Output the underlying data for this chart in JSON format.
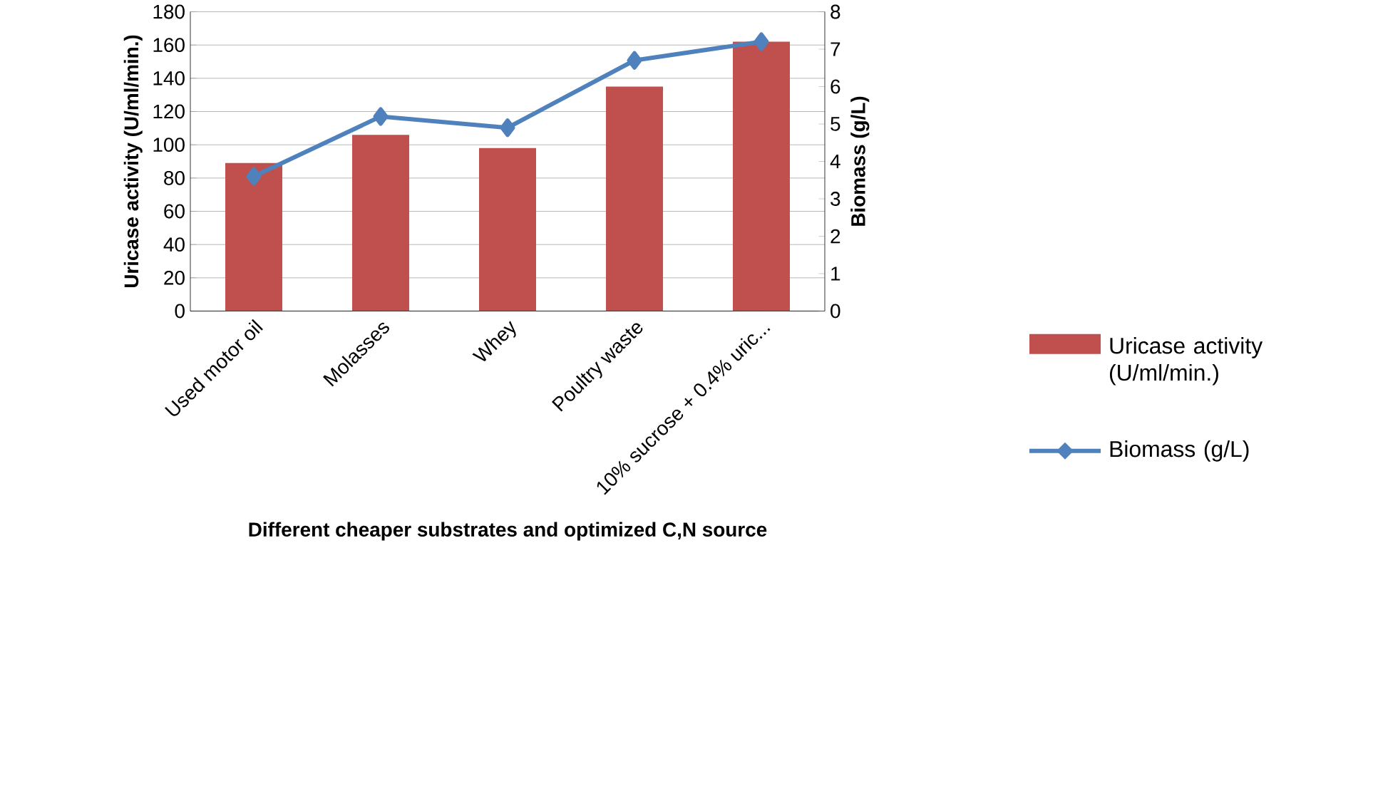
{
  "chart_data": {
    "type": "bar",
    "xlabel": "Different cheaper substrates and optimized C,N source",
    "ylabel": "Uricase activity (U/ml/min.)",
    "y2label": "Biomass (g/L)",
    "categories": [
      "Used motor oil",
      "Molasses",
      "Whey",
      "Poultry waste",
      "10% sucrose + 0.4% uric..."
    ],
    "series": [
      {
        "name": "Uricase activity (U/ml/min.)",
        "color": "#c0504d",
        "values": [
          89,
          106,
          98,
          135,
          162
        ]
      },
      {
        "name": "Biomass (g/L)",
        "type": "line",
        "axis": "y2",
        "color": "#4f81bd",
        "marker": "diamond",
        "values": [
          3.6,
          5.2,
          4.9,
          6.7,
          7.2
        ]
      }
    ],
    "ylim": [
      0,
      180
    ],
    "yticks": [
      0,
      20,
      40,
      60,
      80,
      100,
      120,
      140,
      160,
      180
    ],
    "y2lim": [
      0,
      8
    ],
    "y2ticks": [
      0,
      1,
      2,
      3,
      4,
      5,
      6,
      7,
      8
    ],
    "grid": "y",
    "legend": "right"
  }
}
